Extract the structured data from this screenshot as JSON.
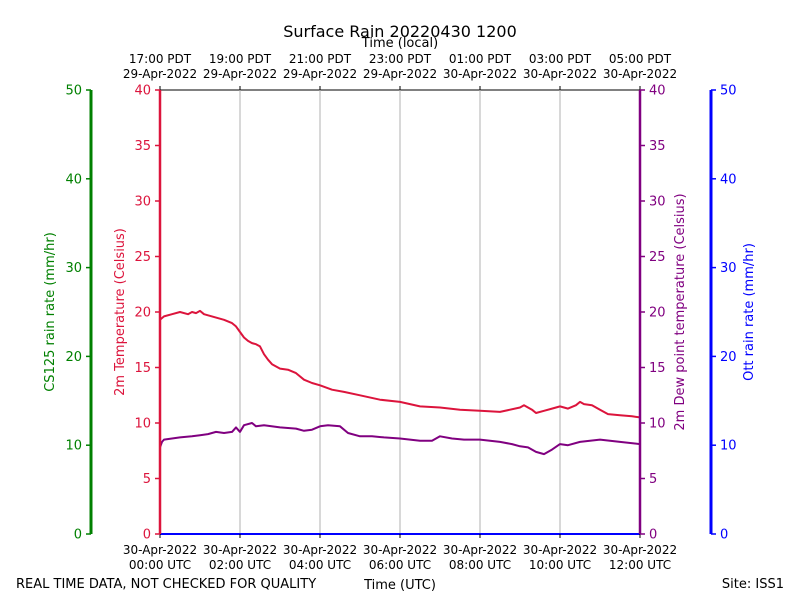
{
  "chart_data": {
    "type": "line",
    "title": "Surface Rain 20220430 1200",
    "top_axis_title": "Time (local)",
    "xlabel": "Time (UTC)",
    "x_range_hours_utc": [
      0,
      12
    ],
    "x_ticks_utc": [
      {
        "hour": 0,
        "date": "30-Apr-2022",
        "time": "00:00 UTC"
      },
      {
        "hour": 2,
        "date": "30-Apr-2022",
        "time": "02:00 UTC"
      },
      {
        "hour": 4,
        "date": "30-Apr-2022",
        "time": "04:00 UTC"
      },
      {
        "hour": 6,
        "date": "30-Apr-2022",
        "time": "06:00 UTC"
      },
      {
        "hour": 8,
        "date": "30-Apr-2022",
        "time": "08:00 UTC"
      },
      {
        "hour": 10,
        "date": "30-Apr-2022",
        "time": "10:00 UTC"
      },
      {
        "hour": 12,
        "date": "30-Apr-2022",
        "time": "12:00 UTC"
      }
    ],
    "x_ticks_local": [
      {
        "hour": 0,
        "time": "17:00 PDT",
        "date": "29-Apr-2022"
      },
      {
        "hour": 2,
        "time": "19:00 PDT",
        "date": "29-Apr-2022"
      },
      {
        "hour": 4,
        "time": "21:00 PDT",
        "date": "29-Apr-2022"
      },
      {
        "hour": 6,
        "time": "23:00 PDT",
        "date": "29-Apr-2022"
      },
      {
        "hour": 8,
        "time": "01:00 PDT",
        "date": "30-Apr-2022"
      },
      {
        "hour": 10,
        "time": "03:00 PDT",
        "date": "30-Apr-2022"
      },
      {
        "hour": 12,
        "time": "05:00 PDT",
        "date": "30-Apr-2022"
      }
    ],
    "axes": {
      "cs125": {
        "label": "CS125 rain rate (mm/hr)",
        "color": "#008000",
        "ylim": [
          0,
          50
        ],
        "ticks": [
          0,
          10,
          20,
          30,
          40,
          50
        ]
      },
      "temperature": {
        "label": "2m Temperature (Celsius)",
        "color": "#dc143c",
        "ylim": [
          0,
          40
        ],
        "ticks": [
          0,
          5,
          10,
          15,
          20,
          25,
          30,
          35,
          40
        ]
      },
      "dewpoint": {
        "label": "2m Dew point temperature (Celsius)",
        "color": "#800080",
        "ylim": [
          0,
          40
        ],
        "ticks": [
          0,
          5,
          10,
          15,
          20,
          25,
          30,
          35,
          40
        ]
      },
      "ott": {
        "label": "Ott rain rate (mm/hr)",
        "color": "#0000ff",
        "ylim": [
          0,
          50
        ],
        "ticks": [
          0,
          10,
          20,
          30,
          40,
          50
        ]
      }
    },
    "series": [
      {
        "name": "2m Temperature",
        "color": "#dc143c",
        "axis": "temperature",
        "x": [
          0,
          0.1,
          0.3,
          0.5,
          0.7,
          0.8,
          0.9,
          1.0,
          1.1,
          1.2,
          1.4,
          1.6,
          1.8,
          1.9,
          2.0,
          2.1,
          2.2,
          2.3,
          2.4,
          2.5,
          2.6,
          2.7,
          2.8,
          3.0,
          3.2,
          3.4,
          3.6,
          3.8,
          4.0,
          4.3,
          4.6,
          5.0,
          5.5,
          6.0,
          6.5,
          7.0,
          7.5,
          8.0,
          8.5,
          9.0,
          9.1,
          9.3,
          9.4,
          9.6,
          9.8,
          10.0,
          10.2,
          10.4,
          10.5,
          10.6,
          10.8,
          11.0,
          11.2,
          11.5,
          11.8,
          12.0
        ],
        "values": [
          19.3,
          19.6,
          19.8,
          20.0,
          19.8,
          20.0,
          19.9,
          20.1,
          19.8,
          19.7,
          19.5,
          19.3,
          19.0,
          18.7,
          18.2,
          17.7,
          17.4,
          17.2,
          17.1,
          16.9,
          16.2,
          15.7,
          15.3,
          14.9,
          14.8,
          14.5,
          13.9,
          13.6,
          13.4,
          13.0,
          12.8,
          12.5,
          12.1,
          11.9,
          11.5,
          11.4,
          11.2,
          11.1,
          11.0,
          11.4,
          11.6,
          11.2,
          10.9,
          11.1,
          11.3,
          11.5,
          11.3,
          11.6,
          11.9,
          11.7,
          11.6,
          11.2,
          10.8,
          10.7,
          10.6,
          10.5
        ]
      },
      {
        "name": "2m Dew point temperature",
        "color": "#800080",
        "axis": "dewpoint",
        "x": [
          0,
          0.05,
          0.1,
          0.3,
          0.5,
          0.8,
          1.0,
          1.2,
          1.4,
          1.6,
          1.8,
          1.9,
          2.0,
          2.1,
          2.3,
          2.4,
          2.6,
          3.0,
          3.4,
          3.6,
          3.8,
          4.0,
          4.2,
          4.5,
          4.7,
          5.0,
          5.3,
          5.6,
          6.0,
          6.5,
          6.8,
          7.0,
          7.3,
          7.6,
          8.0,
          8.5,
          8.8,
          9.0,
          9.2,
          9.4,
          9.6,
          9.8,
          10.0,
          10.2,
          10.5,
          11.0,
          11.5,
          12.0
        ],
        "values": [
          7.8,
          8.3,
          8.5,
          8.6,
          8.7,
          8.8,
          8.9,
          9.0,
          9.2,
          9.1,
          9.2,
          9.6,
          9.2,
          9.8,
          10.0,
          9.7,
          9.8,
          9.6,
          9.5,
          9.3,
          9.4,
          9.7,
          9.8,
          9.7,
          9.1,
          8.8,
          8.8,
          8.7,
          8.6,
          8.4,
          8.4,
          8.8,
          8.6,
          8.5,
          8.5,
          8.3,
          8.1,
          7.9,
          7.8,
          7.4,
          7.2,
          7.6,
          8.1,
          8.0,
          8.3,
          8.5,
          8.3,
          8.1
        ]
      },
      {
        "name": "CS125 rain rate",
        "color": "#008000",
        "axis": "cs125",
        "x": [
          0,
          12
        ],
        "values": [
          0,
          0
        ]
      },
      {
        "name": "Ott rain rate",
        "color": "#0000ff",
        "axis": "ott",
        "x": [
          0,
          12
        ],
        "values": [
          0,
          0
        ]
      }
    ]
  },
  "footer": {
    "left": "REAL TIME DATA, NOT CHECKED FOR QUALITY",
    "right": "Site: ISS1"
  }
}
